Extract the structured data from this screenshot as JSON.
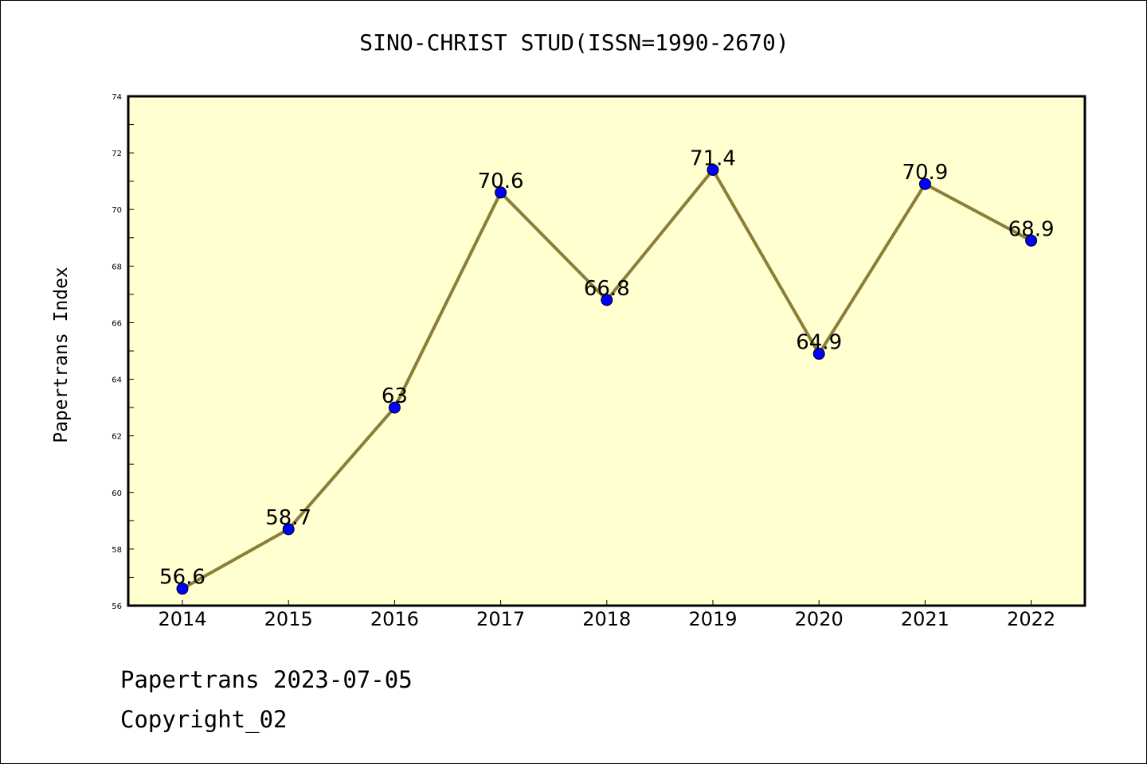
{
  "footer": {
    "date_text": "Papertrans 2023-07-05",
    "copyright_text": "Copyright_02"
  },
  "colors": {
    "plot_background": "#ffffd0",
    "line": "#8b7d3a",
    "marker": "#0000ff"
  },
  "chart_data": {
    "type": "line",
    "title": "SINO-CHRIST STUD(ISSN=1990-2670)",
    "xlabel": "",
    "ylabel": "Papertrans Index",
    "categories": [
      "2014",
      "2015",
      "2016",
      "2017",
      "2018",
      "2019",
      "2020",
      "2021",
      "2022"
    ],
    "series": [
      {
        "values": [
          56.6,
          58.7,
          63,
          70.6,
          66.8,
          71.4,
          64.9,
          70.9,
          68.9
        ],
        "labels": [
          "56.6",
          "58.7",
          "63",
          "70.6",
          "66.8",
          "71.4",
          "64.9",
          "70.9",
          "68.9"
        ]
      }
    ],
    "ylim": [
      56,
      74
    ],
    "yticks": [
      56,
      58,
      60,
      62,
      64,
      66,
      68,
      70,
      72,
      74
    ],
    "grid": false,
    "legend": "none"
  }
}
